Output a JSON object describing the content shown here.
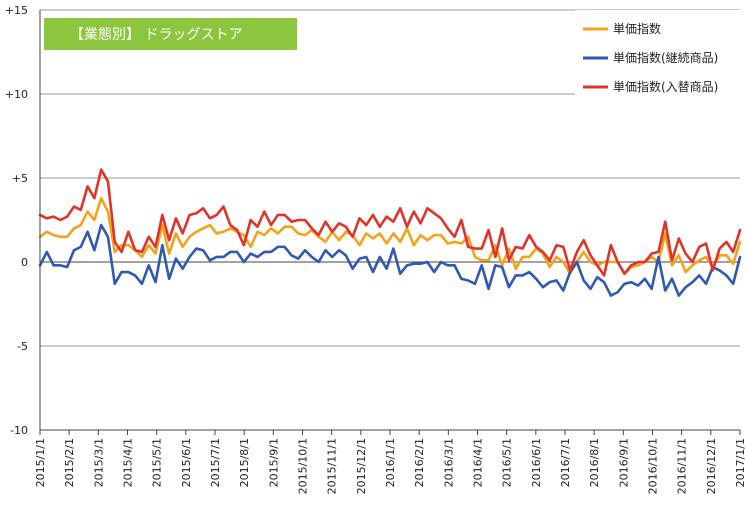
{
  "chart_data": {
    "type": "line",
    "title": "【業態別】 ドラッグストア",
    "xlabel": "",
    "ylabel": "",
    "ylim": [
      -10,
      15
    ],
    "y_ticks": [
      {
        "value": 15,
        "label": "+15"
      },
      {
        "value": 10,
        "label": "+10"
      },
      {
        "value": 5,
        "label": "+5"
      },
      {
        "value": 0,
        "label": "0"
      },
      {
        "value": -5,
        "label": "-5"
      },
      {
        "value": -10,
        "label": "-10"
      }
    ],
    "x_tick_labels": [
      "2015/1/1",
      "2015/2/1",
      "2015/3/1",
      "2015/4/1",
      "2015/5/1",
      "2015/6/1",
      "2015/7/1",
      "2015/8/1",
      "2015/9/1",
      "2015/10/1",
      "2015/11/1",
      "2015/12/1",
      "2016/1/1",
      "2016/2/1",
      "2016/3/1",
      "2016/4/1",
      "2016/5/1",
      "2016/6/1",
      "2016/7/1",
      "2016/8/1",
      "2016/9/1",
      "2016/10/1",
      "2016/11/1",
      "2016/12/1",
      "2017/1/1"
    ],
    "grid": "horizontal",
    "legend_position": "top-right",
    "series": [
      {
        "name": "単価指数",
        "color": "#f5a21b",
        "values": [
          1.5,
          1.8,
          1.6,
          1.5,
          1.5,
          2.0,
          2.2,
          3.0,
          2.5,
          3.8,
          3.0,
          0.6,
          1.0,
          1.0,
          0.7,
          0.3,
          1.0,
          0.5,
          2.2,
          0.5,
          1.7,
          0.9,
          1.5,
          1.8,
          2.0,
          2.2,
          1.7,
          1.8,
          2.0,
          1.8,
          1.6,
          0.9,
          1.8,
          1.6,
          2.0,
          1.7,
          2.1,
          2.1,
          1.7,
          1.6,
          1.9,
          1.5,
          1.2,
          1.8,
          1.3,
          1.8,
          1.6,
          1.0,
          1.7,
          1.4,
          1.7,
          1.1,
          1.7,
          1.2,
          2.0,
          1.0,
          1.6,
          1.3,
          1.6,
          1.6,
          1.1,
          1.2,
          1.1,
          1.5,
          0.3,
          0.1,
          0.1,
          1.0,
          -0.2,
          0.8,
          -0.4,
          0.3,
          0.3,
          0.8,
          0.5,
          -0.3,
          0.3,
          0.0,
          -0.7,
          0.0,
          0.6,
          0.0,
          -0.2,
          0.0,
          0.0,
          0.0,
          -0.7,
          -0.3,
          -0.2,
          0.0,
          0.3,
          0.0,
          1.7,
          -0.2,
          0.4,
          -0.6,
          -0.2,
          0.1,
          0.3,
          -0.3,
          0.4,
          0.4,
          -0.1,
          1.2
        ]
      },
      {
        "name": "単価指数(継続商品)",
        "color": "#2f5ab3",
        "values": [
          -0.2,
          0.6,
          -0.2,
          -0.2,
          -0.3,
          0.7,
          0.9,
          1.8,
          0.7,
          2.2,
          1.5,
          -1.3,
          -0.6,
          -0.6,
          -0.8,
          -1.3,
          -0.2,
          -1.2,
          1.0,
          -1.0,
          0.2,
          -0.4,
          0.3,
          0.8,
          0.7,
          0.1,
          0.3,
          0.3,
          0.6,
          0.6,
          0.0,
          0.5,
          0.3,
          0.6,
          0.6,
          0.9,
          0.9,
          0.4,
          0.2,
          0.7,
          0.3,
          0.0,
          0.7,
          0.3,
          0.7,
          0.4,
          -0.4,
          0.2,
          0.3,
          -0.6,
          0.3,
          -0.4,
          0.8,
          -0.7,
          -0.2,
          -0.1,
          -0.1,
          0.0,
          -0.6,
          0.0,
          -0.2,
          -0.2,
          -1.0,
          -1.1,
          -1.3,
          -0.2,
          -1.6,
          -0.2,
          -0.3,
          -1.5,
          -0.8,
          -0.8,
          -0.6,
          -1.0,
          -1.5,
          -1.2,
          -1.1,
          -1.7,
          -0.6,
          0.0,
          -1.1,
          -1.6,
          -0.9,
          -1.2,
          -2.0,
          -1.8,
          -1.3,
          -1.2,
          -1.4,
          -1.0,
          -1.6,
          0.3,
          -1.7,
          -1.0,
          -2.0,
          -1.5,
          -1.2,
          -0.8,
          -1.3,
          -0.3,
          -0.5,
          -0.8,
          -1.3,
          0.3
        ]
      },
      {
        "name": "単価指数(入替商品)",
        "color": "#e0342b",
        "values": [
          2.8,
          2.6,
          2.7,
          2.5,
          2.7,
          3.3,
          3.1,
          4.5,
          3.8,
          5.5,
          4.8,
          1.2,
          0.6,
          1.8,
          0.7,
          0.6,
          1.5,
          0.9,
          2.8,
          1.3,
          2.6,
          1.7,
          2.8,
          2.9,
          3.2,
          2.6,
          2.8,
          3.3,
          2.2,
          1.9,
          1.0,
          2.5,
          2.1,
          3.0,
          2.2,
          2.8,
          2.8,
          2.4,
          2.5,
          2.5,
          2.0,
          1.6,
          2.4,
          1.8,
          2.3,
          2.1,
          1.5,
          2.6,
          2.2,
          2.8,
          2.1,
          2.7,
          2.4,
          3.2,
          2.1,
          3.0,
          2.3,
          3.2,
          2.9,
          2.6,
          2.0,
          1.5,
          2.5,
          0.9,
          0.8,
          0.8,
          1.9,
          0.3,
          2.0,
          0.1,
          0.9,
          0.8,
          1.6,
          0.9,
          0.6,
          0.1,
          1.0,
          0.9,
          -0.5,
          0.6,
          1.3,
          0.4,
          -0.2,
          -0.8,
          1.0,
          0.0,
          -0.7,
          -0.2,
          0.0,
          0.0,
          0.5,
          0.6,
          2.4,
          0.1,
          1.4,
          0.5,
          0.0,
          0.9,
          1.1,
          -0.5,
          0.8,
          1.2,
          0.6,
          1.9
        ]
      }
    ]
  }
}
